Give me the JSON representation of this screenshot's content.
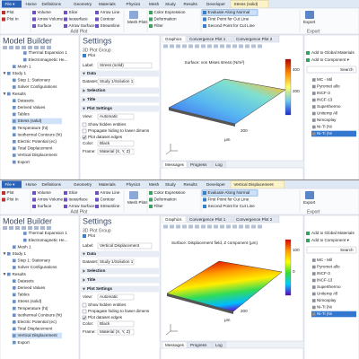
{
  "windows": [
    {
      "tabs": [
        "File ▾",
        "Home",
        "Definitions",
        "Geometry",
        "Materials",
        "Physics",
        "Mesh",
        "Study",
        "Results",
        "Developer",
        "Stress (solid)"
      ],
      "ribbon": [
        {
          "items": [
            "Plot",
            "Plot In"
          ]
        },
        {
          "items": [
            "Volume",
            "Arrow Volume",
            "Surface",
            "Slice",
            "Isosurface",
            "Arrow Surface",
            "Arrow Line",
            "Contour",
            "Streamline"
          ],
          "label": "Add Plot"
        },
        {
          "items": [
            "Mesh Plots"
          ]
        },
        {
          "items": [
            "Color Expression",
            "Deformation",
            "Filter"
          ]
        },
        {
          "items": [
            "Evaluate Along Normal",
            "First Point for Cut Line",
            "Second Point for Cut Line"
          ]
        },
        {
          "items": [
            "Export"
          ],
          "label": "Export"
        }
      ],
      "model_builder": {
        "title": "Model Builder",
        "physics_features": [
          "Thermal Expansion 1",
          "Electromagnetic He..."
        ],
        "component_items": [
          "Mesh 1"
        ],
        "tree": [
          {
            "label": "Study 1",
            "children": [
              {
                "label": "Step 1: Stationary"
              },
              {
                "label": "Solver Configurations"
              }
            ]
          },
          {
            "label": "Results",
            "children": [
              {
                "label": "Datasets"
              },
              {
                "label": "Derived Values"
              },
              {
                "label": "Tables"
              },
              {
                "label": "Stress (solid)",
                "selected": true
              },
              {
                "label": "Temperature (ht)"
              },
              {
                "label": "Isothermal Contours (ht)"
              },
              {
                "label": "Electric Potential (ec)"
              },
              {
                "label": "Total Displacement"
              },
              {
                "label": "Vertical Displacement"
              },
              {
                "label": "Export"
              }
            ]
          }
        ]
      },
      "settings": {
        "title": "Settings",
        "subtitle": "3D Plot Group",
        "plot_button": "Plot",
        "label_caption": "Label:",
        "label_value": "Stress (solid)",
        "sections": [
          {
            "name": "Data",
            "rows": [
              {
                "caption": "Dataset:",
                "value": "Study 1/Solution 1"
              }
            ]
          },
          {
            "name": "Selection"
          },
          {
            "name": "Title"
          },
          {
            "name": "Plot Settings",
            "rows": [
              {
                "caption": "View:",
                "value": "Automatic"
              },
              {
                "check": "Show hidden entities"
              },
              {
                "check": "Propagate hiding to lower dimens"
              },
              {
                "check": "Plot dataset edges",
                "checked": true
              },
              {
                "caption": "Color:",
                "value": "Black"
              },
              {
                "caption": "Frame:",
                "value": "Material (X, Y, Z)"
              }
            ]
          }
        ]
      },
      "graphics": {
        "tabs": [
          "Graphics",
          "Convergence Plot 1",
          "Convergence Plot 2"
        ],
        "plot_title": "Surface: von Mises stress (N/m²)",
        "colorbar_labels": [
          "400",
          "200"
        ],
        "axis_labels": [
          "200",
          "μm"
        ],
        "bottom_tabs": [
          "Messages",
          "Progress",
          "Log"
        ]
      },
      "materials": {
        "buttons": [
          "Add to Global Materials",
          "Add to Component ▾"
        ],
        "search": "Search",
        "list": [
          "MC - Mil",
          "Pyromet allo",
          "INCF-3",
          "INCF-13",
          "Superthermo",
          "Unitemp All",
          "Nimoxplay",
          "Ni-Ti (Ni",
          "Ni-Ti (Ni"
        ]
      }
    },
    {
      "tabs": [
        "File ▾",
        "Home",
        "Definitions",
        "Geometry",
        "Materials",
        "Physics",
        "Mesh",
        "Study",
        "Results",
        "Developer",
        "Vertical Displacement"
      ],
      "ribbon": [
        {
          "items": [
            "Plot",
            "Plot In"
          ]
        },
        {
          "items": [
            "Volume",
            "Arrow Volume",
            "Surface",
            "Slice",
            "Isosurface",
            "Arrow Surface",
            "Arrow Line",
            "Contour",
            "Streamline"
          ],
          "label": "Add Plot"
        },
        {
          "items": [
            "Mesh Plots"
          ]
        },
        {
          "items": [
            "Color Expression",
            "Deformation",
            "Filter"
          ]
        },
        {
          "items": [
            "Evaluate Along Normal",
            "First Point for Cut Line",
            "Second Point for Cut Line"
          ]
        },
        {
          "items": [
            "Export"
          ],
          "label": "Export"
        }
      ],
      "model_builder": {
        "title": "Model Builder",
        "physics_features": [
          "Thermal Expansion 1",
          "Electromagnetic He..."
        ],
        "component_items": [
          "Mesh 1"
        ],
        "tree": [
          {
            "label": "Study 1",
            "children": [
              {
                "label": "Step 1: Stationary"
              },
              {
                "label": "Solver Configurations"
              }
            ]
          },
          {
            "label": "Results",
            "children": [
              {
                "label": "Datasets"
              },
              {
                "label": "Derived Values"
              },
              {
                "label": "Tables"
              },
              {
                "label": "Stress (solid)"
              },
              {
                "label": "Temperature (ht)"
              },
              {
                "label": "Isothermal Contours (ht)"
              },
              {
                "label": "Electric Potential (ec)"
              },
              {
                "label": "Total Displacement"
              },
              {
                "label": "Vertical Displacement",
                "selected": true
              },
              {
                "label": "Export"
              }
            ]
          }
        ]
      },
      "settings": {
        "title": "Settings",
        "subtitle": "3D Plot Group",
        "plot_button": "Plot",
        "label_caption": "Label:",
        "label_value": "Vertical Displacement",
        "sections": [
          {
            "name": "Data",
            "rows": [
              {
                "caption": "Dataset:",
                "value": "Study 1/Solution 1"
              }
            ]
          },
          {
            "name": "Selection"
          },
          {
            "name": "Title"
          },
          {
            "name": "Plot Settings",
            "rows": [
              {
                "caption": "View:",
                "value": "Automatic"
              },
              {
                "check": "Show hidden entities"
              },
              {
                "check": "Propagate hiding to lower dimens"
              },
              {
                "check": "Plot dataset edges",
                "checked": true
              },
              {
                "caption": "Color:",
                "value": "Black"
              },
              {
                "caption": "Frame:",
                "value": "Material (X, Y, Z)"
              }
            ]
          }
        ]
      },
      "graphics": {
        "tabs": [
          "Graphics",
          "Convergence Plot 1",
          "Convergence Plot 2"
        ],
        "plot_title": "Surface: Displacement field, Z component (μm)",
        "colorbar_labels": [
          "100",
          "0"
        ],
        "axis_labels": [
          "200",
          "μm"
        ],
        "bottom_tabs": [
          "Messages",
          "Progress",
          "Log"
        ]
      },
      "materials": {
        "buttons": [
          "Add to Global Materials",
          "Add to Component ▾"
        ],
        "search": "Search",
        "list": [
          "MC - Mil",
          "Pyromet allo",
          "INCF-3",
          "INCF-13",
          "Superthermo",
          "Unitemp All",
          "Nimoxplay",
          "Ni-Ti (Ni",
          "Ni-Ti (Ni"
        ]
      }
    }
  ]
}
